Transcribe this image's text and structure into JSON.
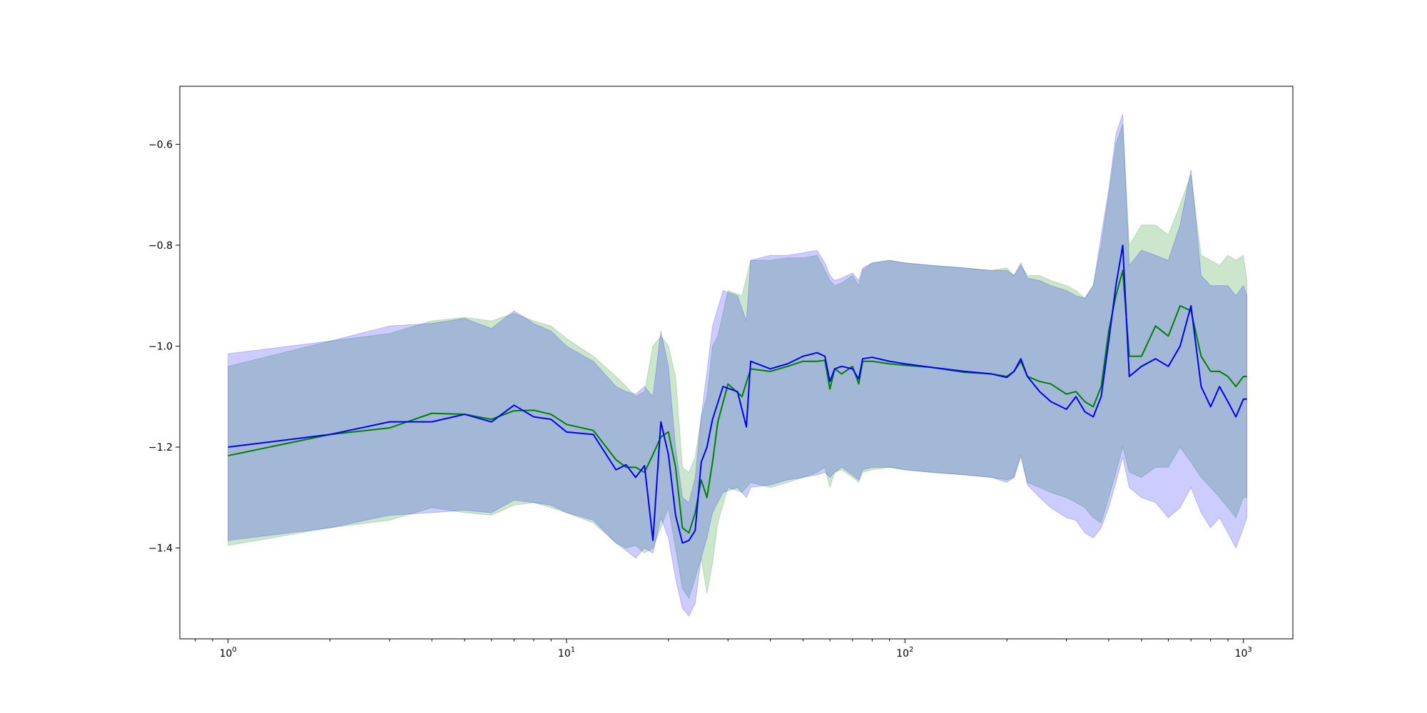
{
  "chart_data": {
    "type": "line",
    "title": "",
    "xlabel": "",
    "ylabel": "",
    "xscale": "log",
    "xlim": [
      0.72,
      1400
    ],
    "ylim": [
      -1.58,
      -0.485
    ],
    "grid": false,
    "legend": "none",
    "xticks": [
      {
        "value": 1,
        "base": "10",
        "exp": "0"
      },
      {
        "value": 10,
        "base": "10",
        "exp": "1"
      },
      {
        "value": 100,
        "base": "10",
        "exp": "2"
      },
      {
        "value": 1000,
        "base": "10",
        "exp": "3"
      }
    ],
    "yticks": [
      {
        "value": -1.4,
        "label": "−1.4"
      },
      {
        "value": -1.2,
        "label": "−1.2"
      },
      {
        "value": -1.0,
        "label": "−1.0"
      },
      {
        "value": -0.8,
        "label": "−0.8"
      },
      {
        "value": -0.6,
        "label": "−0.6"
      }
    ],
    "series": [
      {
        "color": "#008000",
        "band_color": "#008000",
        "band_opacity": 0.2,
        "points": [
          [
            1,
            -1.217,
            -1.04,
            -1.395
          ],
          [
            2,
            -1.175,
            -0.99,
            -1.36
          ],
          [
            3,
            -1.162,
            -0.975,
            -1.345
          ],
          [
            4,
            -1.133,
            -0.95,
            -1.32
          ],
          [
            5,
            -1.135,
            -0.943,
            -1.33
          ],
          [
            6,
            -1.145,
            -0.95,
            -1.335
          ],
          [
            7,
            -1.128,
            -0.935,
            -1.315
          ],
          [
            8,
            -1.127,
            -0.95,
            -1.31
          ],
          [
            9,
            -1.135,
            -0.96,
            -1.32
          ],
          [
            10,
            -1.155,
            -0.985,
            -1.33
          ],
          [
            12,
            -1.167,
            -1.02,
            -1.35
          ],
          [
            14,
            -1.225,
            -1.06,
            -1.39
          ],
          [
            15,
            -1.24,
            -1.08,
            -1.4
          ],
          [
            16,
            -1.24,
            -1.1,
            -1.395
          ],
          [
            17,
            -1.25,
            -1.09,
            -1.41
          ],
          [
            18,
            -1.215,
            -1.0,
            -1.4
          ],
          [
            19,
            -1.18,
            -0.98,
            -1.36
          ],
          [
            20,
            -1.17,
            -1.0,
            -1.32
          ],
          [
            21,
            -1.24,
            -1.06,
            -1.4
          ],
          [
            22,
            -1.36,
            -1.24,
            -1.48
          ],
          [
            23,
            -1.37,
            -1.25,
            -1.5
          ],
          [
            24,
            -1.33,
            -1.22,
            -1.46
          ],
          [
            25,
            -1.265,
            -1.14,
            -1.42
          ],
          [
            26,
            -1.3,
            -1.1,
            -1.49
          ],
          [
            27,
            -1.23,
            -1.0,
            -1.43
          ],
          [
            28,
            -1.15,
            -0.98,
            -1.35
          ],
          [
            30,
            -1.075,
            -0.89,
            -1.28
          ],
          [
            33,
            -1.1,
            -0.9,
            -1.29
          ],
          [
            35,
            -1.045,
            -0.83,
            -1.27
          ],
          [
            40,
            -1.05,
            -0.83,
            -1.28
          ],
          [
            45,
            -1.04,
            -0.825,
            -1.27
          ],
          [
            50,
            -1.03,
            -0.825,
            -1.26
          ],
          [
            55,
            -1.03,
            -0.82,
            -1.25
          ],
          [
            58,
            -1.028,
            -0.85,
            -1.24
          ],
          [
            60,
            -1.085,
            -0.87,
            -1.28
          ],
          [
            62,
            -1.045,
            -0.88,
            -1.25
          ],
          [
            65,
            -1.055,
            -0.875,
            -1.245
          ],
          [
            70,
            -1.04,
            -0.86,
            -1.26
          ],
          [
            73,
            -1.075,
            -0.88,
            -1.27
          ],
          [
            75,
            -1.03,
            -0.85,
            -1.25
          ],
          [
            80,
            -1.03,
            -0.835,
            -1.245
          ],
          [
            90,
            -1.035,
            -0.83,
            -1.24
          ],
          [
            100,
            -1.038,
            -0.835,
            -1.245
          ],
          [
            120,
            -1.042,
            -0.84,
            -1.25
          ],
          [
            150,
            -1.052,
            -0.845,
            -1.255
          ],
          [
            180,
            -1.055,
            -0.85,
            -1.26
          ],
          [
            200,
            -1.06,
            -0.845,
            -1.265
          ],
          [
            210,
            -1.05,
            -0.86,
            -1.26
          ],
          [
            220,
            -1.03,
            -0.84,
            -1.22
          ],
          [
            230,
            -1.06,
            -0.86,
            -1.27
          ],
          [
            250,
            -1.07,
            -0.86,
            -1.28
          ],
          [
            270,
            -1.075,
            -0.87,
            -1.29
          ],
          [
            300,
            -1.095,
            -0.88,
            -1.3
          ],
          [
            320,
            -1.09,
            -0.89,
            -1.31
          ],
          [
            340,
            -1.11,
            -0.905,
            -1.32
          ],
          [
            360,
            -1.12,
            -0.88,
            -1.34
          ],
          [
            380,
            -1.08,
            -0.8,
            -1.35
          ],
          [
            400,
            -0.97,
            -0.7,
            -1.3
          ],
          [
            420,
            -0.9,
            -0.6,
            -1.25
          ],
          [
            440,
            -0.85,
            -0.56,
            -1.2
          ],
          [
            460,
            -1.02,
            -0.8,
            -1.25
          ],
          [
            500,
            -1.02,
            -0.76,
            -1.26
          ],
          [
            550,
            -0.96,
            -0.76,
            -1.24
          ],
          [
            600,
            -0.98,
            -0.78,
            -1.24
          ],
          [
            650,
            -0.92,
            -0.72,
            -1.2
          ],
          [
            700,
            -0.93,
            -0.66,
            -1.23
          ],
          [
            750,
            -1.02,
            -0.82,
            -1.26
          ],
          [
            800,
            -1.05,
            -0.83,
            -1.28
          ],
          [
            850,
            -1.05,
            -0.84,
            -1.3
          ],
          [
            900,
            -1.06,
            -0.82,
            -1.32
          ],
          [
            950,
            -1.08,
            -0.83,
            -1.34
          ],
          [
            1000,
            -1.06,
            -0.82,
            -1.3
          ],
          [
            1024,
            -1.06,
            -0.87,
            -1.3
          ]
        ]
      },
      {
        "color": "#0000ff",
        "band_color": "#0000ff",
        "band_opacity": 0.2,
        "points": [
          [
            1,
            -1.2,
            -1.015,
            -1.385
          ],
          [
            2,
            -1.175,
            -0.99,
            -1.36
          ],
          [
            3,
            -1.15,
            -0.96,
            -1.335
          ],
          [
            4,
            -1.15,
            -0.955,
            -1.33
          ],
          [
            5,
            -1.135,
            -0.945,
            -1.325
          ],
          [
            6,
            -1.15,
            -0.965,
            -1.33
          ],
          [
            7,
            -1.117,
            -0.93,
            -1.305
          ],
          [
            8,
            -1.14,
            -0.955,
            -1.31
          ],
          [
            9,
            -1.145,
            -0.97,
            -1.315
          ],
          [
            10,
            -1.17,
            -1.0,
            -1.33
          ],
          [
            12,
            -1.175,
            -1.03,
            -1.345
          ],
          [
            14,
            -1.245,
            -1.08,
            -1.39
          ],
          [
            15,
            -1.235,
            -1.09,
            -1.405
          ],
          [
            16,
            -1.26,
            -1.095,
            -1.42
          ],
          [
            17,
            -1.237,
            -1.08,
            -1.4
          ],
          [
            18,
            -1.385,
            -1.1,
            -1.41
          ],
          [
            19,
            -1.15,
            -0.97,
            -1.34
          ],
          [
            20,
            -1.215,
            -1.04,
            -1.38
          ],
          [
            21,
            -1.335,
            -1.2,
            -1.46
          ],
          [
            22,
            -1.39,
            -1.3,
            -1.52
          ],
          [
            23,
            -1.385,
            -1.31,
            -1.535
          ],
          [
            24,
            -1.365,
            -1.26,
            -1.51
          ],
          [
            25,
            -1.23,
            -1.14,
            -1.42
          ],
          [
            26,
            -1.2,
            -1.05,
            -1.38
          ],
          [
            27,
            -1.145,
            -0.96,
            -1.33
          ],
          [
            29,
            -1.08,
            -0.89,
            -1.29
          ],
          [
            32,
            -1.09,
            -0.9,
            -1.28
          ],
          [
            34,
            -1.16,
            -0.95,
            -1.3
          ],
          [
            35,
            -1.03,
            -0.83,
            -1.28
          ],
          [
            40,
            -1.045,
            -0.82,
            -1.275
          ],
          [
            45,
            -1.035,
            -0.82,
            -1.265
          ],
          [
            50,
            -1.02,
            -0.815,
            -1.26
          ],
          [
            55,
            -1.013,
            -0.81,
            -1.255
          ],
          [
            58,
            -1.02,
            -0.835,
            -1.25
          ],
          [
            60,
            -1.07,
            -0.86,
            -1.26
          ],
          [
            62,
            -1.045,
            -0.87,
            -1.25
          ],
          [
            65,
            -1.04,
            -0.865,
            -1.24
          ],
          [
            70,
            -1.045,
            -0.855,
            -1.255
          ],
          [
            73,
            -1.065,
            -0.87,
            -1.265
          ],
          [
            75,
            -1.025,
            -0.845,
            -1.245
          ],
          [
            80,
            -1.022,
            -0.835,
            -1.24
          ],
          [
            90,
            -1.03,
            -0.83,
            -1.24
          ],
          [
            100,
            -1.035,
            -0.835,
            -1.245
          ],
          [
            120,
            -1.042,
            -0.84,
            -1.25
          ],
          [
            150,
            -1.05,
            -0.845,
            -1.255
          ],
          [
            180,
            -1.055,
            -0.85,
            -1.26
          ],
          [
            200,
            -1.062,
            -0.85,
            -1.27
          ],
          [
            210,
            -1.05,
            -0.86,
            -1.26
          ],
          [
            220,
            -1.025,
            -0.835,
            -1.215
          ],
          [
            230,
            -1.06,
            -0.865,
            -1.275
          ],
          [
            250,
            -1.09,
            -0.87,
            -1.3
          ],
          [
            270,
            -1.11,
            -0.88,
            -1.32
          ],
          [
            300,
            -1.125,
            -0.89,
            -1.34
          ],
          [
            320,
            -1.1,
            -0.9,
            -1.345
          ],
          [
            340,
            -1.13,
            -0.905,
            -1.37
          ],
          [
            360,
            -1.14,
            -0.88,
            -1.38
          ],
          [
            380,
            -1.1,
            -0.78,
            -1.36
          ],
          [
            400,
            -0.99,
            -0.69,
            -1.32
          ],
          [
            420,
            -0.88,
            -0.58,
            -1.27
          ],
          [
            440,
            -0.8,
            -0.54,
            -1.22
          ],
          [
            460,
            -1.06,
            -0.84,
            -1.28
          ],
          [
            500,
            -1.04,
            -0.81,
            -1.3
          ],
          [
            550,
            -1.025,
            -0.82,
            -1.31
          ],
          [
            600,
            -1.04,
            -0.83,
            -1.34
          ],
          [
            650,
            -1.0,
            -0.76,
            -1.32
          ],
          [
            700,
            -0.92,
            -0.65,
            -1.28
          ],
          [
            750,
            -1.08,
            -0.86,
            -1.33
          ],
          [
            800,
            -1.12,
            -0.88,
            -1.36
          ],
          [
            850,
            -1.08,
            -0.88,
            -1.34
          ],
          [
            900,
            -1.11,
            -0.88,
            -1.37
          ],
          [
            950,
            -1.14,
            -0.9,
            -1.4
          ],
          [
            1000,
            -1.105,
            -0.88,
            -1.36
          ],
          [
            1024,
            -1.105,
            -0.9,
            -1.34
          ]
        ]
      }
    ]
  }
}
